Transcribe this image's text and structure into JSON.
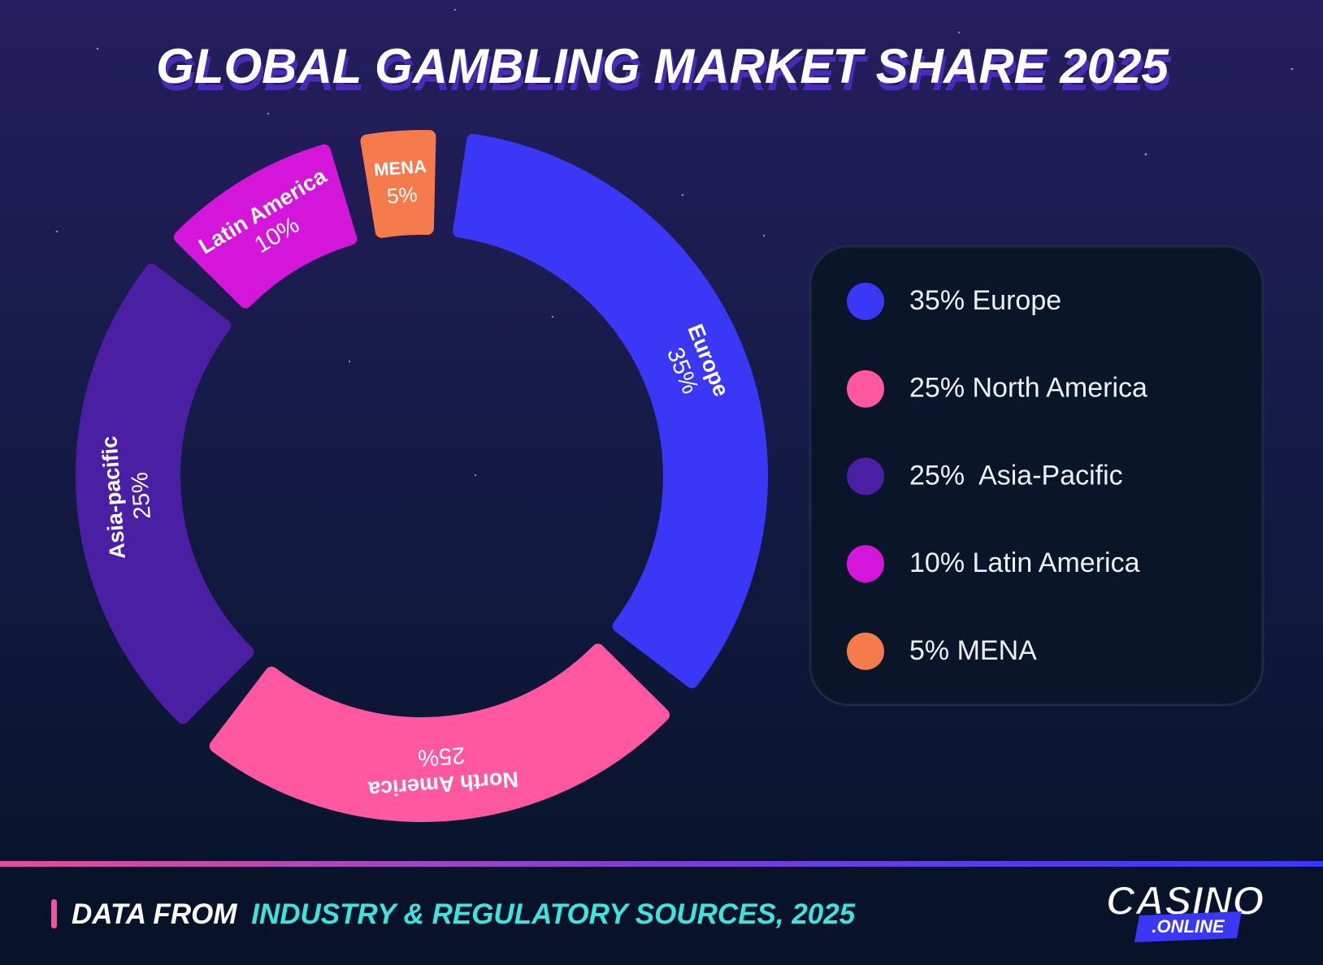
{
  "chart_data": {
    "type": "donut",
    "title": "GLOBAL GAMBLING MARKET SHARE 2025",
    "categories": [
      "Europe",
      "North America",
      "Asia-pacific",
      "Latin America",
      "MENA"
    ],
    "values": [
      35,
      25,
      25,
      10,
      5
    ],
    "value_labels": [
      "35%",
      "25%",
      "25%",
      "10%",
      "5%"
    ],
    "colors": [
      "#3b37f6",
      "#ff58a1",
      "#4b1fa3",
      "#d416da",
      "#f57b4c"
    ],
    "legend": {
      "labels": [
        "35% Europe",
        "25% North America",
        "25%  Asia-Pacific",
        "10% Latin America",
        "5% MENA"
      ]
    }
  },
  "footer": {
    "prefix": "DATA FROM",
    "source": "INDUSTRY & REGULATORY SOURCES, 2025"
  },
  "logo": {
    "name": "CASINO",
    "suffix": ".ONLINE"
  }
}
